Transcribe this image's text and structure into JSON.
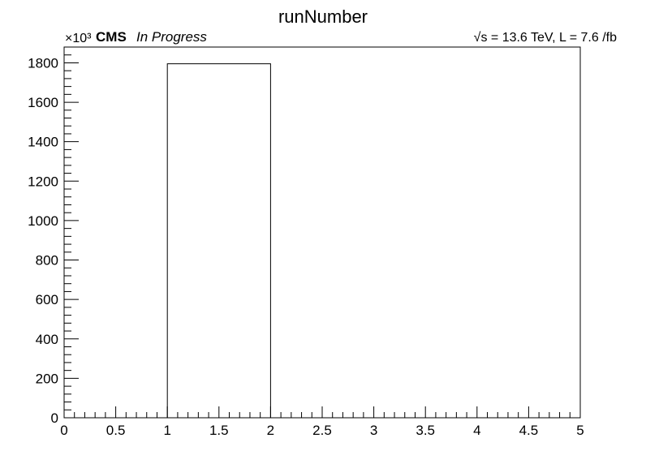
{
  "chart_data": {
    "type": "bar",
    "title": "runNumber",
    "xlabel": "",
    "ylabel": "",
    "xlim": [
      0,
      5
    ],
    "ylim": [
      0,
      1880
    ],
    "x_ticks": [
      "0",
      "0.5",
      "1",
      "1.5",
      "2",
      "2.5",
      "3",
      "3.5",
      "4",
      "4.5",
      "5"
    ],
    "y_ticks": [
      "0",
      "200",
      "400",
      "600",
      "800",
      "1000",
      "1200",
      "1400",
      "1600",
      "1800"
    ],
    "y_multiplier": "×10³",
    "bins": [
      {
        "x_low": 1,
        "x_high": 2,
        "value": 1795
      }
    ],
    "grid": false,
    "legend": "none"
  },
  "labels": {
    "experiment": "CMS",
    "status": "In Progress",
    "energy": "√s = 13.6 TeV, L = 7.6 /fb"
  },
  "colors": {
    "line": "#000000",
    "background": "#ffffff"
  }
}
